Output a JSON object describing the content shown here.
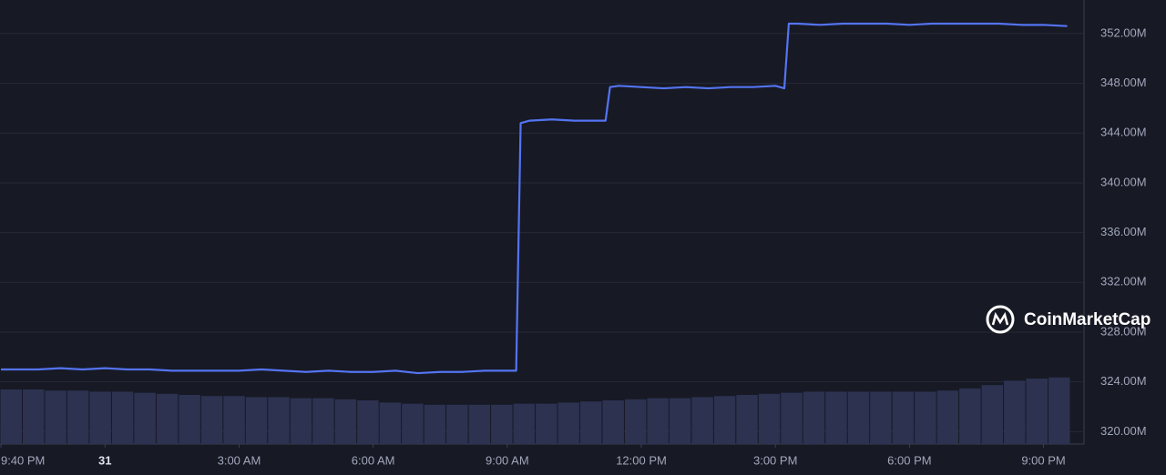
{
  "chart_data": {
    "type": "line",
    "watermark": "CoinMarketCap",
    "x": [
      -2.33,
      -2,
      -1.5,
      -1,
      -0.5,
      0,
      0.5,
      1,
      1.5,
      2,
      2.5,
      3,
      3.5,
      4,
      4.5,
      5,
      5.5,
      6,
      6.5,
      7,
      7.5,
      8,
      8.5,
      9,
      9.2,
      9.3,
      9.5,
      10,
      10.5,
      11,
      11.2,
      11.3,
      11.5,
      12,
      12.5,
      13,
      13.5,
      14,
      14.5,
      15,
      15.2,
      15.3,
      15.5,
      16,
      16.5,
      17,
      17.5,
      18,
      18.5,
      19,
      19.5,
      20,
      20.5,
      21,
      21.53
    ],
    "series": [
      {
        "color": "#5474f2",
        "values": [
          325.0,
          325.0,
          325.0,
          325.1,
          325.0,
          325.1,
          325.0,
          325.0,
          324.9,
          324.9,
          324.9,
          324.9,
          325.0,
          324.9,
          324.8,
          324.9,
          324.8,
          324.8,
          324.9,
          324.7,
          324.8,
          324.8,
          324.9,
          324.9,
          324.9,
          344.8,
          345.0,
          345.1,
          345.0,
          345.0,
          345.0,
          347.7,
          347.8,
          347.7,
          347.6,
          347.7,
          347.6,
          347.7,
          347.7,
          347.8,
          347.6,
          352.8,
          352.8,
          352.7,
          352.8,
          352.8,
          352.8,
          352.7,
          352.8,
          352.8,
          352.8,
          352.8,
          352.7,
          352.7,
          352.6
        ]
      }
    ],
    "volume": {
      "color": "#2c3250",
      "values": [
        50,
        50,
        49,
        49,
        48,
        48,
        47,
        46,
        45,
        44,
        44,
        43,
        43,
        42,
        42,
        41,
        40,
        38,
        37,
        36,
        36,
        36,
        36,
        37,
        37,
        38,
        39,
        40,
        41,
        42,
        42,
        43,
        44,
        45,
        46,
        47,
        48,
        48,
        48,
        48,
        48,
        48,
        49,
        51,
        54,
        58,
        60,
        61
      ],
      "vlim": [
        0,
        100
      ]
    },
    "xlim": [
      -2.35,
      21.6
    ],
    "xticks": [
      {
        "value": -2.33,
        "label": "9:40 PM"
      },
      {
        "value": 0,
        "label": "31"
      },
      {
        "value": 3,
        "label": "3:00 AM"
      },
      {
        "value": 6,
        "label": "6:00 AM"
      },
      {
        "value": 9,
        "label": "9:00 AM"
      },
      {
        "value": 12,
        "label": "12:00 PM"
      },
      {
        "value": 15,
        "label": "3:00 PM"
      },
      {
        "value": 18,
        "label": "6:00 PM"
      },
      {
        "value": 21,
        "label": "9:00 PM"
      }
    ],
    "ylim": [
      319,
      354.7
    ],
    "yticks": [
      {
        "value": 320,
        "label": "320.00M"
      },
      {
        "value": 324,
        "label": "324.00M"
      },
      {
        "value": 328,
        "label": "328.00M"
      },
      {
        "value": 332,
        "label": "332.00M"
      },
      {
        "value": 336,
        "label": "336.00M"
      },
      {
        "value": 340,
        "label": "340.00M"
      },
      {
        "value": 344,
        "label": "344.00M"
      },
      {
        "value": 348,
        "label": "348.00M"
      },
      {
        "value": 352,
        "label": "352.00M"
      }
    ],
    "grid": true
  }
}
